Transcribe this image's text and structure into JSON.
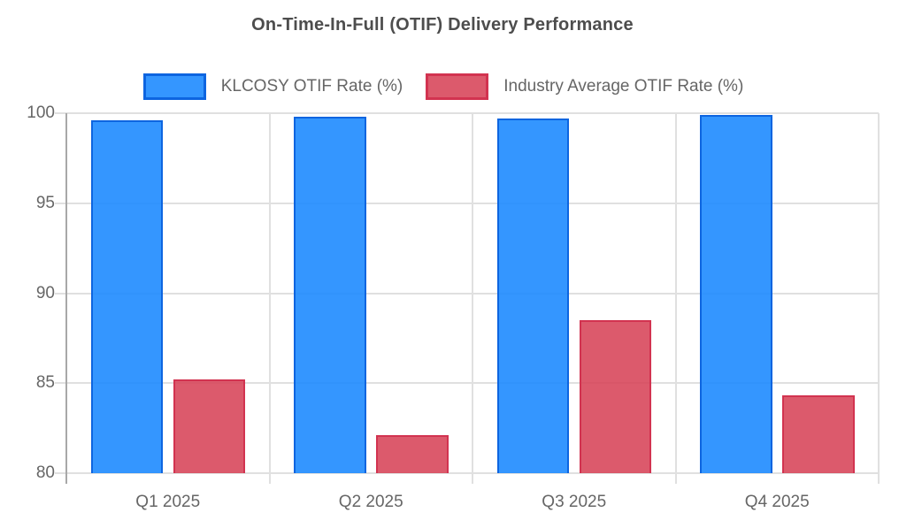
{
  "title": "On-Time-In-Full (OTIF) Delivery Performance",
  "chart_data": {
    "type": "bar",
    "title": "On-Time-In-Full (OTIF) Delivery Performance",
    "categories": [
      "Q1 2025",
      "Q2 2025",
      "Q3 2025",
      "Q4 2025"
    ],
    "series": [
      {
        "name": "KLCOSY OTIF Rate (%)",
        "values": [
          99.6,
          99.8,
          99.7,
          99.9
        ],
        "fill": "rgba(30,139,255,0.9)",
        "border": "#0d65e0"
      },
      {
        "name": "Industry Average OTIF Rate (%)",
        "values": [
          85.2,
          82.1,
          88.5,
          84.3
        ],
        "fill": "rgba(214,61,82,0.85)",
        "border": "#d23350"
      }
    ],
    "ylim": [
      80,
      100
    ],
    "yticks": [
      80,
      85,
      90,
      95,
      100
    ],
    "grid": true,
    "legend_position": "top",
    "xlabel": "",
    "ylabel": ""
  },
  "colors": {
    "gridline": "#e0e0e0",
    "axis_line": "#a8a8a8",
    "label_text": "#666666",
    "title_text": "#4d4d4d",
    "background": "#ffffff"
  }
}
